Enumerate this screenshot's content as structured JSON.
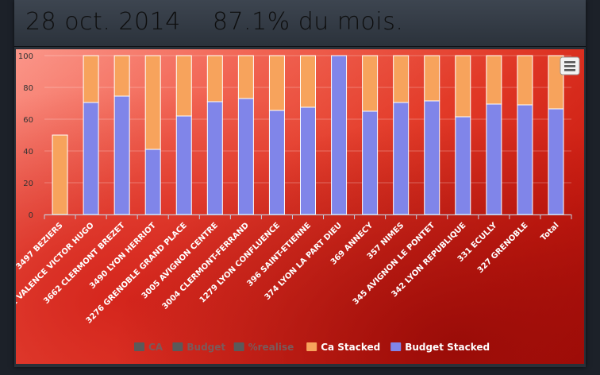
{
  "header": {
    "title": "28 oct. 2014    87.1% du mois."
  },
  "chart_data": {
    "type": "bar",
    "stacked": true,
    "categories": [
      "3497 BEZIERS",
      "3491 VALENCE VICTOR HUGO",
      "3662 CLERMONT BREZET",
      "3490 LYON HERRIOT",
      "3276 GRENOBLE GRAND PLACE",
      "3005 AVIGNON CENTRE",
      "3004 CLERMONT-FERRAND",
      "1279 LYON CONFLUENCE",
      "396 SAINT-ETIENNE",
      "374 LYON LA PART DIEU",
      "369 ANNECY",
      "357 NIMES",
      "345 AVIGNON LE PONTET",
      "342 LYON REPUBLIQUE",
      "331 ECULLY",
      "327 GRENOBLE",
      "Total"
    ],
    "series": [
      {
        "name": "Budget Stacked",
        "color": "#8085e9",
        "values": [
          0,
          70.5,
          74.5,
          41,
          62,
          71,
          73,
          65.5,
          67.5,
          100,
          65,
          70.5,
          71.5,
          61.5,
          69.5,
          69,
          66.5
        ]
      },
      {
        "name": "Ca Stacked",
        "color": "#f7a35c",
        "values": [
          50,
          29.5,
          25.5,
          59,
          38,
          29,
          27,
          34.5,
          32.5,
          0,
          35,
          29.5,
          28.5,
          38.5,
          30.5,
          31,
          33.5
        ]
      }
    ],
    "yticks": [
      0,
      20,
      40,
      60,
      80,
      100
    ],
    "ylim": [
      0,
      100
    ],
    "grid": true,
    "legend": {
      "position": "bottom",
      "items": [
        {
          "label": "CA",
          "color": "#555555",
          "hidden": true
        },
        {
          "label": "Budget",
          "color": "#555555",
          "hidden": true
        },
        {
          "label": "%realise",
          "color": "#555555",
          "hidden": true
        },
        {
          "label": "Ca Stacked",
          "color": "#f7a35c",
          "hidden": false
        },
        {
          "label": "Budget Stacked",
          "color": "#8085e9",
          "hidden": false
        }
      ]
    }
  }
}
